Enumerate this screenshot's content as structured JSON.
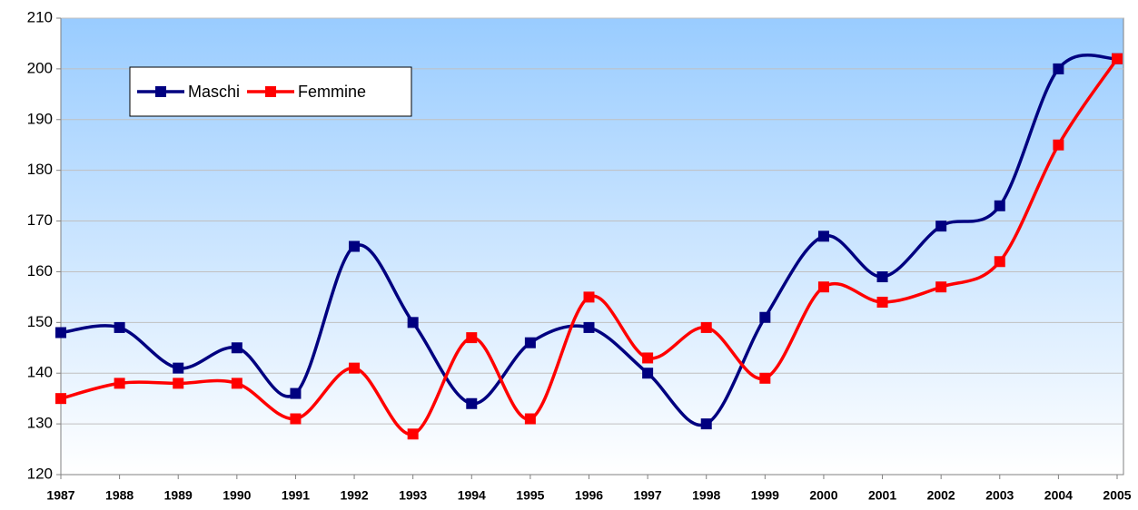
{
  "chart_data": {
    "type": "line",
    "smooth": true,
    "legend": "upper left",
    "grid": true,
    "categories": [
      "1987",
      "1988",
      "1989",
      "1990",
      "1991",
      "1992",
      "1993",
      "1994",
      "1995",
      "1996",
      "1997",
      "1998",
      "1999",
      "2000",
      "2001",
      "2002",
      "2003",
      "2004",
      "2005"
    ],
    "series": [
      {
        "name": "Maschi",
        "color": "#000080",
        "values": [
          148,
          149,
          141,
          145,
          136,
          165,
          150,
          134,
          146,
          149,
          140,
          130,
          151,
          167,
          159,
          169,
          173,
          200,
          202
        ]
      },
      {
        "name": "Femmine",
        "color": "#ff0000",
        "values": [
          135,
          138,
          138,
          138,
          131,
          141,
          128,
          147,
          131,
          155,
          143,
          149,
          139,
          157,
          154,
          157,
          162,
          185,
          202
        ]
      }
    ],
    "ylim": [
      120,
      210
    ],
    "yticks": [
      120,
      130,
      140,
      150,
      160,
      170,
      180,
      190,
      200,
      210
    ]
  }
}
